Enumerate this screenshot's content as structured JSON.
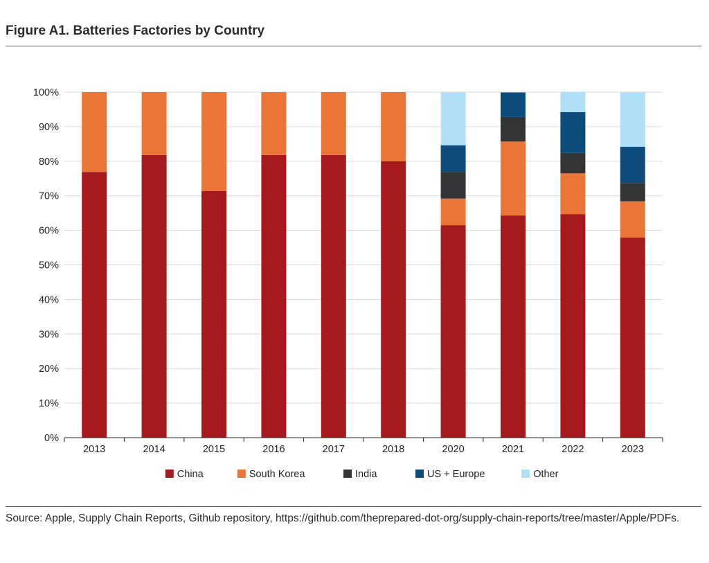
{
  "figure": {
    "title": "Figure A1. Batteries Factories by Country",
    "source": "Source: Apple, Supply Chain Reports, Github repository, https://github.com/theprepared-dot-org/supply-chain-reports/tree/master/Apple/PDFs."
  },
  "chart_data": {
    "type": "bar",
    "stacked": true,
    "title": "",
    "xlabel": "",
    "ylabel": "",
    "ylim": [
      0,
      100
    ],
    "y_ticks": [
      "0%",
      "10%",
      "20%",
      "30%",
      "40%",
      "50%",
      "60%",
      "70%",
      "80%",
      "90%",
      "100%"
    ],
    "grid": true,
    "legend_position": "bottom",
    "categories": [
      "2013",
      "2014",
      "2015",
      "2016",
      "2017",
      "2018",
      "2020",
      "2021",
      "2022",
      "2023"
    ],
    "series": [
      {
        "name": "China",
        "color": "#a8191e",
        "values": [
          76.9,
          81.8,
          71.4,
          81.8,
          81.8,
          80.0,
          61.5,
          64.3,
          64.7,
          57.9
        ]
      },
      {
        "name": "South Korea",
        "color": "#eb7536",
        "values": [
          23.1,
          18.2,
          28.6,
          18.2,
          18.2,
          20.0,
          7.7,
          21.4,
          11.8,
          10.5
        ]
      },
      {
        "name": "India",
        "color": "#333436",
        "values": [
          0,
          0,
          0,
          0,
          0,
          0,
          7.7,
          7.1,
          5.9,
          5.3
        ]
      },
      {
        "name": "US + Europe",
        "color": "#0e4c7c",
        "values": [
          0,
          0,
          0,
          0,
          0,
          0,
          7.7,
          7.1,
          11.8,
          10.5
        ]
      },
      {
        "name": "Other",
        "color": "#aedff6",
        "values": [
          0,
          0,
          0,
          0,
          0,
          0,
          15.4,
          0,
          5.9,
          15.8
        ]
      }
    ]
  }
}
